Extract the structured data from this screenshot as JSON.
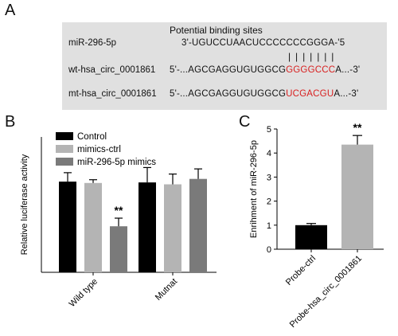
{
  "panel_a": {
    "letter": "A",
    "header": "Potential binding sites",
    "rows": [
      {
        "label": "miR-296-5p",
        "seq_black": "3'-UGUCCUAACUCCCCCCCGGGA-'5",
        "seq_red": "",
        "seq_tail": ""
      },
      {
        "label": "wt-hsa_circ_0001861",
        "seq_black": "5'-...AGCGAGGUGUGGCG",
        "seq_red": "GGGGCCC",
        "seq_tail": "A...-3'"
      },
      {
        "label": "mt-hsa_circ_0001861",
        "seq_black": "5'-...AGCGAGGUGUGGCG",
        "seq_red": "UCGACGU",
        "seq_tail": "A...-3'"
      }
    ],
    "pairing_marks": "| | | | | | |"
  },
  "chart_data": [
    {
      "type": "bar",
      "panel": "B",
      "categories": [
        "Wild type",
        "Mutnat"
      ],
      "series": [
        {
          "name": "Control",
          "values": [
            3.35,
            3.32
          ],
          "errors": [
            0.33,
            0.55
          ],
          "color": "#000000"
        },
        {
          "name": "mimics-ctrl",
          "values": [
            3.3,
            3.25
          ],
          "errors": [
            0.12,
            0.38
          ],
          "color": "#b4b4b4"
        },
        {
          "name": "miR-296-5p mimics",
          "values": [
            1.7,
            3.45
          ],
          "errors": [
            0.3,
            0.37
          ],
          "color": "#7a7a7a"
        }
      ],
      "annotations": [
        {
          "category": "Wild type",
          "series": "miR-296-5p mimics",
          "text": "**"
        }
      ],
      "ylabel": "Relative luciferase activity",
      "xlabel": "",
      "ylim": [
        0,
        5
      ],
      "yticks": [],
      "legend_position": "top-left"
    },
    {
      "type": "bar",
      "panel": "C",
      "categories": [
        "Probe-ctrl",
        "Probe-hsa_circ_0001861"
      ],
      "values": [
        1.0,
        4.35
      ],
      "errors": [
        0.07,
        0.38
      ],
      "colors": [
        "#000000",
        "#b4b4b4"
      ],
      "annotations": [
        {
          "category": "Probe-hsa_circ_0001861",
          "text": "**"
        }
      ],
      "ylabel": "Enrihment of miR-296-5p",
      "xlabel": "",
      "ylim": [
        0,
        5
      ],
      "yticks": [
        "0",
        "1",
        "2",
        "3",
        "4",
        "5"
      ]
    }
  ],
  "letters": {
    "b": "B",
    "c": "C"
  }
}
